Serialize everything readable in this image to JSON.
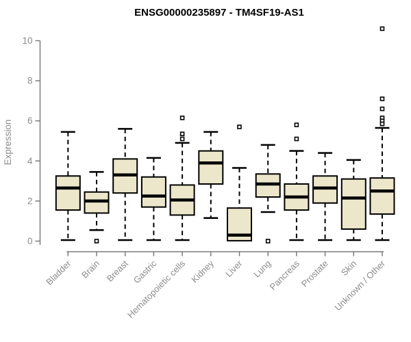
{
  "chart_data": {
    "type": "boxplot",
    "title": "ENSG00000235897 - TM4SF19-AS1",
    "xlabel": "",
    "ylabel": "Expression",
    "ylim": [
      0,
      10
    ],
    "yticks": [
      0,
      2,
      4,
      6,
      8,
      10
    ],
    "grid": false,
    "legend": null,
    "categories": [
      "Bladder",
      "Brain",
      "Breast",
      "Gastric",
      "Hematopoietic cells",
      "Kidney",
      "Liver",
      "Lung",
      "Pancreas",
      "Prostate",
      "Skin",
      "Unknown / Other"
    ],
    "series": [
      {
        "category": "Bladder",
        "whisker_low": 0.05,
        "q1": 1.55,
        "median": 2.65,
        "q3": 3.25,
        "whisker_high": 5.45,
        "outliers": []
      },
      {
        "category": "Brain",
        "whisker_low": 0.55,
        "q1": 1.4,
        "median": 2.0,
        "q3": 2.45,
        "whisker_high": 3.45,
        "outliers": [
          0.0
        ]
      },
      {
        "category": "Breast",
        "whisker_low": 0.05,
        "q1": 2.4,
        "median": 3.3,
        "q3": 4.1,
        "whisker_high": 5.6,
        "outliers": []
      },
      {
        "category": "Gastric",
        "whisker_low": 0.05,
        "q1": 1.7,
        "median": 2.25,
        "q3": 3.2,
        "whisker_high": 4.15,
        "outliers": []
      },
      {
        "category": "Hematopoietic cells",
        "whisker_low": 0.05,
        "q1": 1.3,
        "median": 2.05,
        "q3": 2.8,
        "whisker_high": 4.9,
        "outliers": [
          6.15,
          5.35,
          5.1
        ]
      },
      {
        "category": "Kidney",
        "whisker_low": 1.15,
        "q1": 2.85,
        "median": 3.9,
        "q3": 4.5,
        "whisker_high": 5.45,
        "outliers": []
      },
      {
        "category": "Liver",
        "whisker_low": 0.02,
        "q1": 0.02,
        "median": 0.3,
        "q3": 1.65,
        "whisker_high": 3.65,
        "outliers": [
          5.7
        ]
      },
      {
        "category": "Lung",
        "whisker_low": 1.45,
        "q1": 2.2,
        "median": 2.85,
        "q3": 3.35,
        "whisker_high": 4.8,
        "outliers": [
          0.0
        ]
      },
      {
        "category": "Pancreas",
        "whisker_low": 0.05,
        "q1": 1.55,
        "median": 2.2,
        "q3": 2.85,
        "whisker_high": 4.5,
        "outliers": [
          5.8,
          5.1
        ]
      },
      {
        "category": "Prostate",
        "whisker_low": 0.05,
        "q1": 1.9,
        "median": 2.65,
        "q3": 3.25,
        "whisker_high": 4.4,
        "outliers": []
      },
      {
        "category": "Skin",
        "whisker_low": 0.05,
        "q1": 0.6,
        "median": 2.15,
        "q3": 3.1,
        "whisker_high": 4.05,
        "outliers": []
      },
      {
        "category": "Unknown / Other",
        "whisker_low": 0.05,
        "q1": 1.35,
        "median": 2.5,
        "q3": 3.15,
        "whisker_high": 5.65,
        "outliers": [
          10.6,
          7.1,
          6.6,
          6.15,
          6.0,
          5.85
        ]
      }
    ],
    "colors": {
      "box_fill": "#ece7cb",
      "box_border": "#000000",
      "median": "#000000",
      "whisker": "#000000",
      "outlier_fill": "#ffffff",
      "outlier_border": "#000000",
      "axis": "#7a7a7a",
      "tick_text": "#8c8c8c",
      "title_text": "#000000",
      "background": "#ffffff"
    }
  }
}
